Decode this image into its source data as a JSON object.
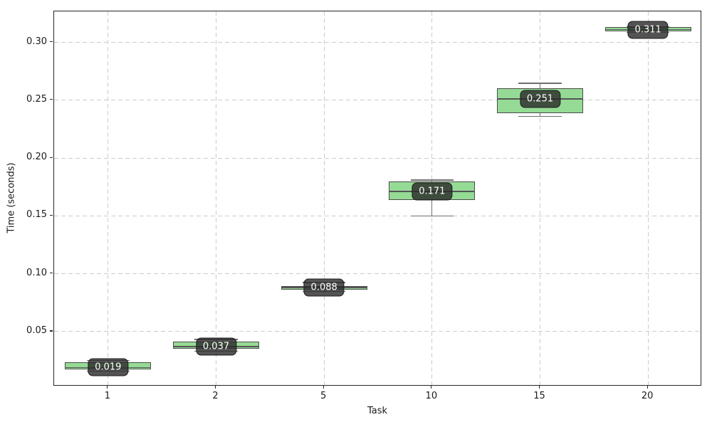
{
  "chart_data": {
    "type": "box",
    "title": "",
    "xlabel": "Task",
    "ylabel": "Time (seconds)",
    "categories": [
      "1",
      "2",
      "5",
      "10",
      "15",
      "20"
    ],
    "ylim": [
      0.0026,
      0.3268
    ],
    "yticks": [
      {
        "value": 0.05,
        "label": "0.05"
      },
      {
        "value": 0.1,
        "label": "0.10"
      },
      {
        "value": 0.15,
        "label": "0.15"
      },
      {
        "value": 0.2,
        "label": "0.20"
      },
      {
        "value": 0.25,
        "label": "0.25"
      },
      {
        "value": 0.3,
        "label": "0.30"
      }
    ],
    "grid": {
      "show": true,
      "style": "dashed",
      "color": "#cccccc"
    },
    "legend": "none",
    "colors": {
      "box_fill": "#95DB95",
      "box_edge": "#4b4b4b",
      "median": "#555555",
      "whisker": "#6f6f6f",
      "spine": "#262626",
      "annotation_bg": "rgba(40,40,40,0.8)",
      "annotation_border": "#1c1c1c",
      "annotation_text": "#ffffff"
    },
    "boxes": [
      {
        "category": "1",
        "whisker_low": 0.016,
        "q1": 0.0174,
        "median": 0.019,
        "q3": 0.0236,
        "whisker_high": 0.025,
        "annotation": "0.019"
      },
      {
        "category": "2",
        "whisker_low": 0.0328,
        "q1": 0.035,
        "median": 0.037,
        "q3": 0.0414,
        "whisker_high": 0.0432,
        "annotation": "0.037"
      },
      {
        "category": "5",
        "whisker_low": 0.0847,
        "q1": 0.0863,
        "median": 0.088,
        "q3": 0.0894,
        "whisker_high": 0.0924,
        "annotation": "0.088"
      },
      {
        "category": "10",
        "whisker_low": 0.15,
        "q1": 0.164,
        "median": 0.171,
        "q3": 0.18,
        "whisker_high": 0.181,
        "annotation": "0.171"
      },
      {
        "category": "15",
        "whisker_low": 0.236,
        "q1": 0.239,
        "median": 0.251,
        "q3": 0.2605,
        "whisker_high": 0.2647,
        "annotation": "0.251"
      },
      {
        "category": "20",
        "whisker_low": 0.3087,
        "q1": 0.3096,
        "median": 0.311,
        "q3": 0.3132,
        "whisker_high": 0.3138,
        "annotation": "0.311"
      }
    ]
  }
}
